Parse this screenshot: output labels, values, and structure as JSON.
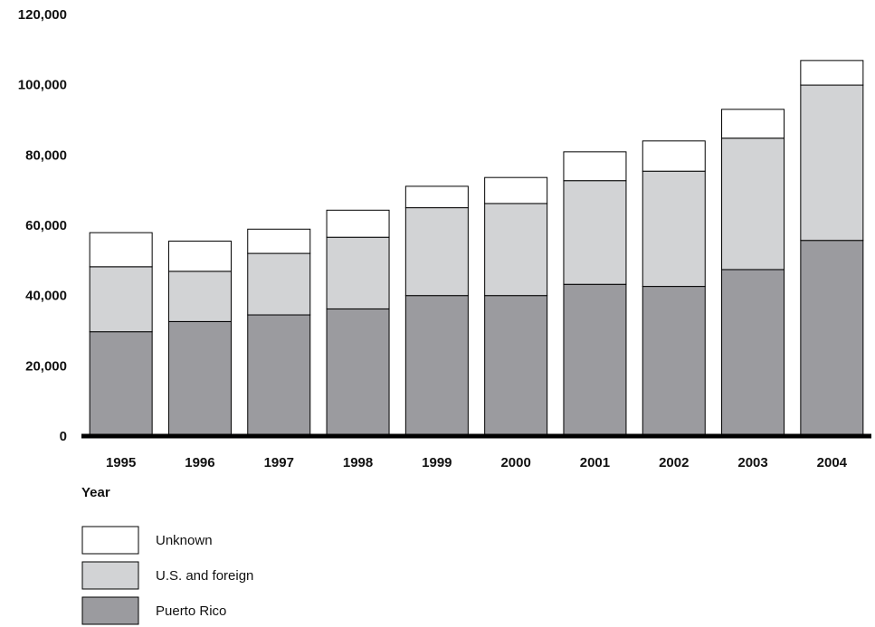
{
  "chart_data": {
    "type": "bar",
    "stacked": true,
    "title": "",
    "xlabel": "Year",
    "ylabel": "",
    "ylim": [
      0,
      120000
    ],
    "yticks": [
      0,
      20000,
      40000,
      60000,
      80000,
      100000,
      120000
    ],
    "ytick_labels": [
      "0",
      "20,000",
      "40,000",
      "60,000",
      "80,000",
      "100,000",
      "120,000"
    ],
    "categories": [
      "1995",
      "1996",
      "1997",
      "1998",
      "1999",
      "2000",
      "2001",
      "2002",
      "2003",
      "2004"
    ],
    "series": [
      {
        "name": "Puerto Rico",
        "color": "#9b9b9f",
        "values": [
          29700,
          32600,
          34500,
          36200,
          40000,
          40000,
          43200,
          42600,
          47400,
          55700
        ]
      },
      {
        "name": "U.S. and foreign",
        "color": "#d2d3d5",
        "values": [
          18500,
          14300,
          17500,
          20400,
          25000,
          26200,
          29500,
          32800,
          37400,
          44200
        ]
      },
      {
        "name": "Unknown",
        "color": "#ffffff",
        "values": [
          9700,
          8600,
          6900,
          7700,
          6100,
          7400,
          8200,
          8600,
          8200,
          7000
        ]
      }
    ],
    "legend": [
      {
        "name": "Unknown",
        "color": "#ffffff"
      },
      {
        "name": "U.S. and foreign",
        "color": "#d2d3d5"
      },
      {
        "name": "Puerto Rico",
        "color": "#9b9b9f"
      }
    ],
    "legend_position": "bottom-left",
    "grid": false
  }
}
